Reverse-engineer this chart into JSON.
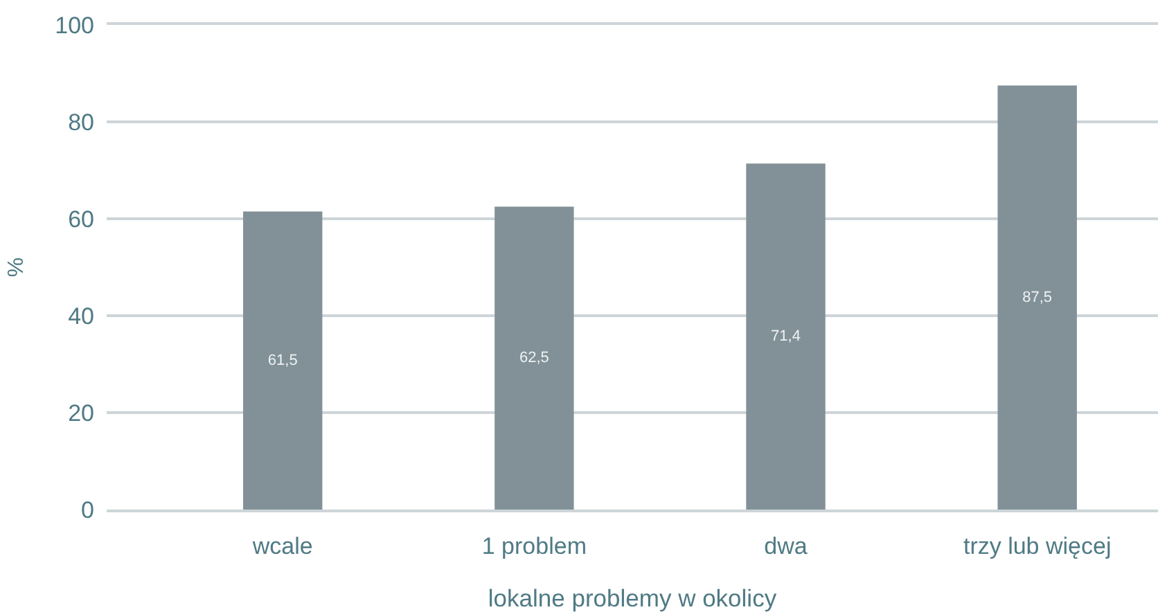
{
  "chart_data": {
    "type": "bar",
    "xlabel": "lokalne problemy w okolicy",
    "ylabel": "%",
    "categories": [
      "wcale",
      "1 problem",
      "dwa",
      "trzy lub więcej"
    ],
    "values": [
      61.5,
      62.5,
      71.4,
      87.5
    ],
    "value_labels": [
      "61,5",
      "62,5",
      "71,4",
      "87,5"
    ],
    "color": "#829198",
    "ylim": [
      0,
      100
    ],
    "yticks": [
      0,
      20,
      40,
      60,
      80,
      100
    ],
    "grid": "y"
  }
}
